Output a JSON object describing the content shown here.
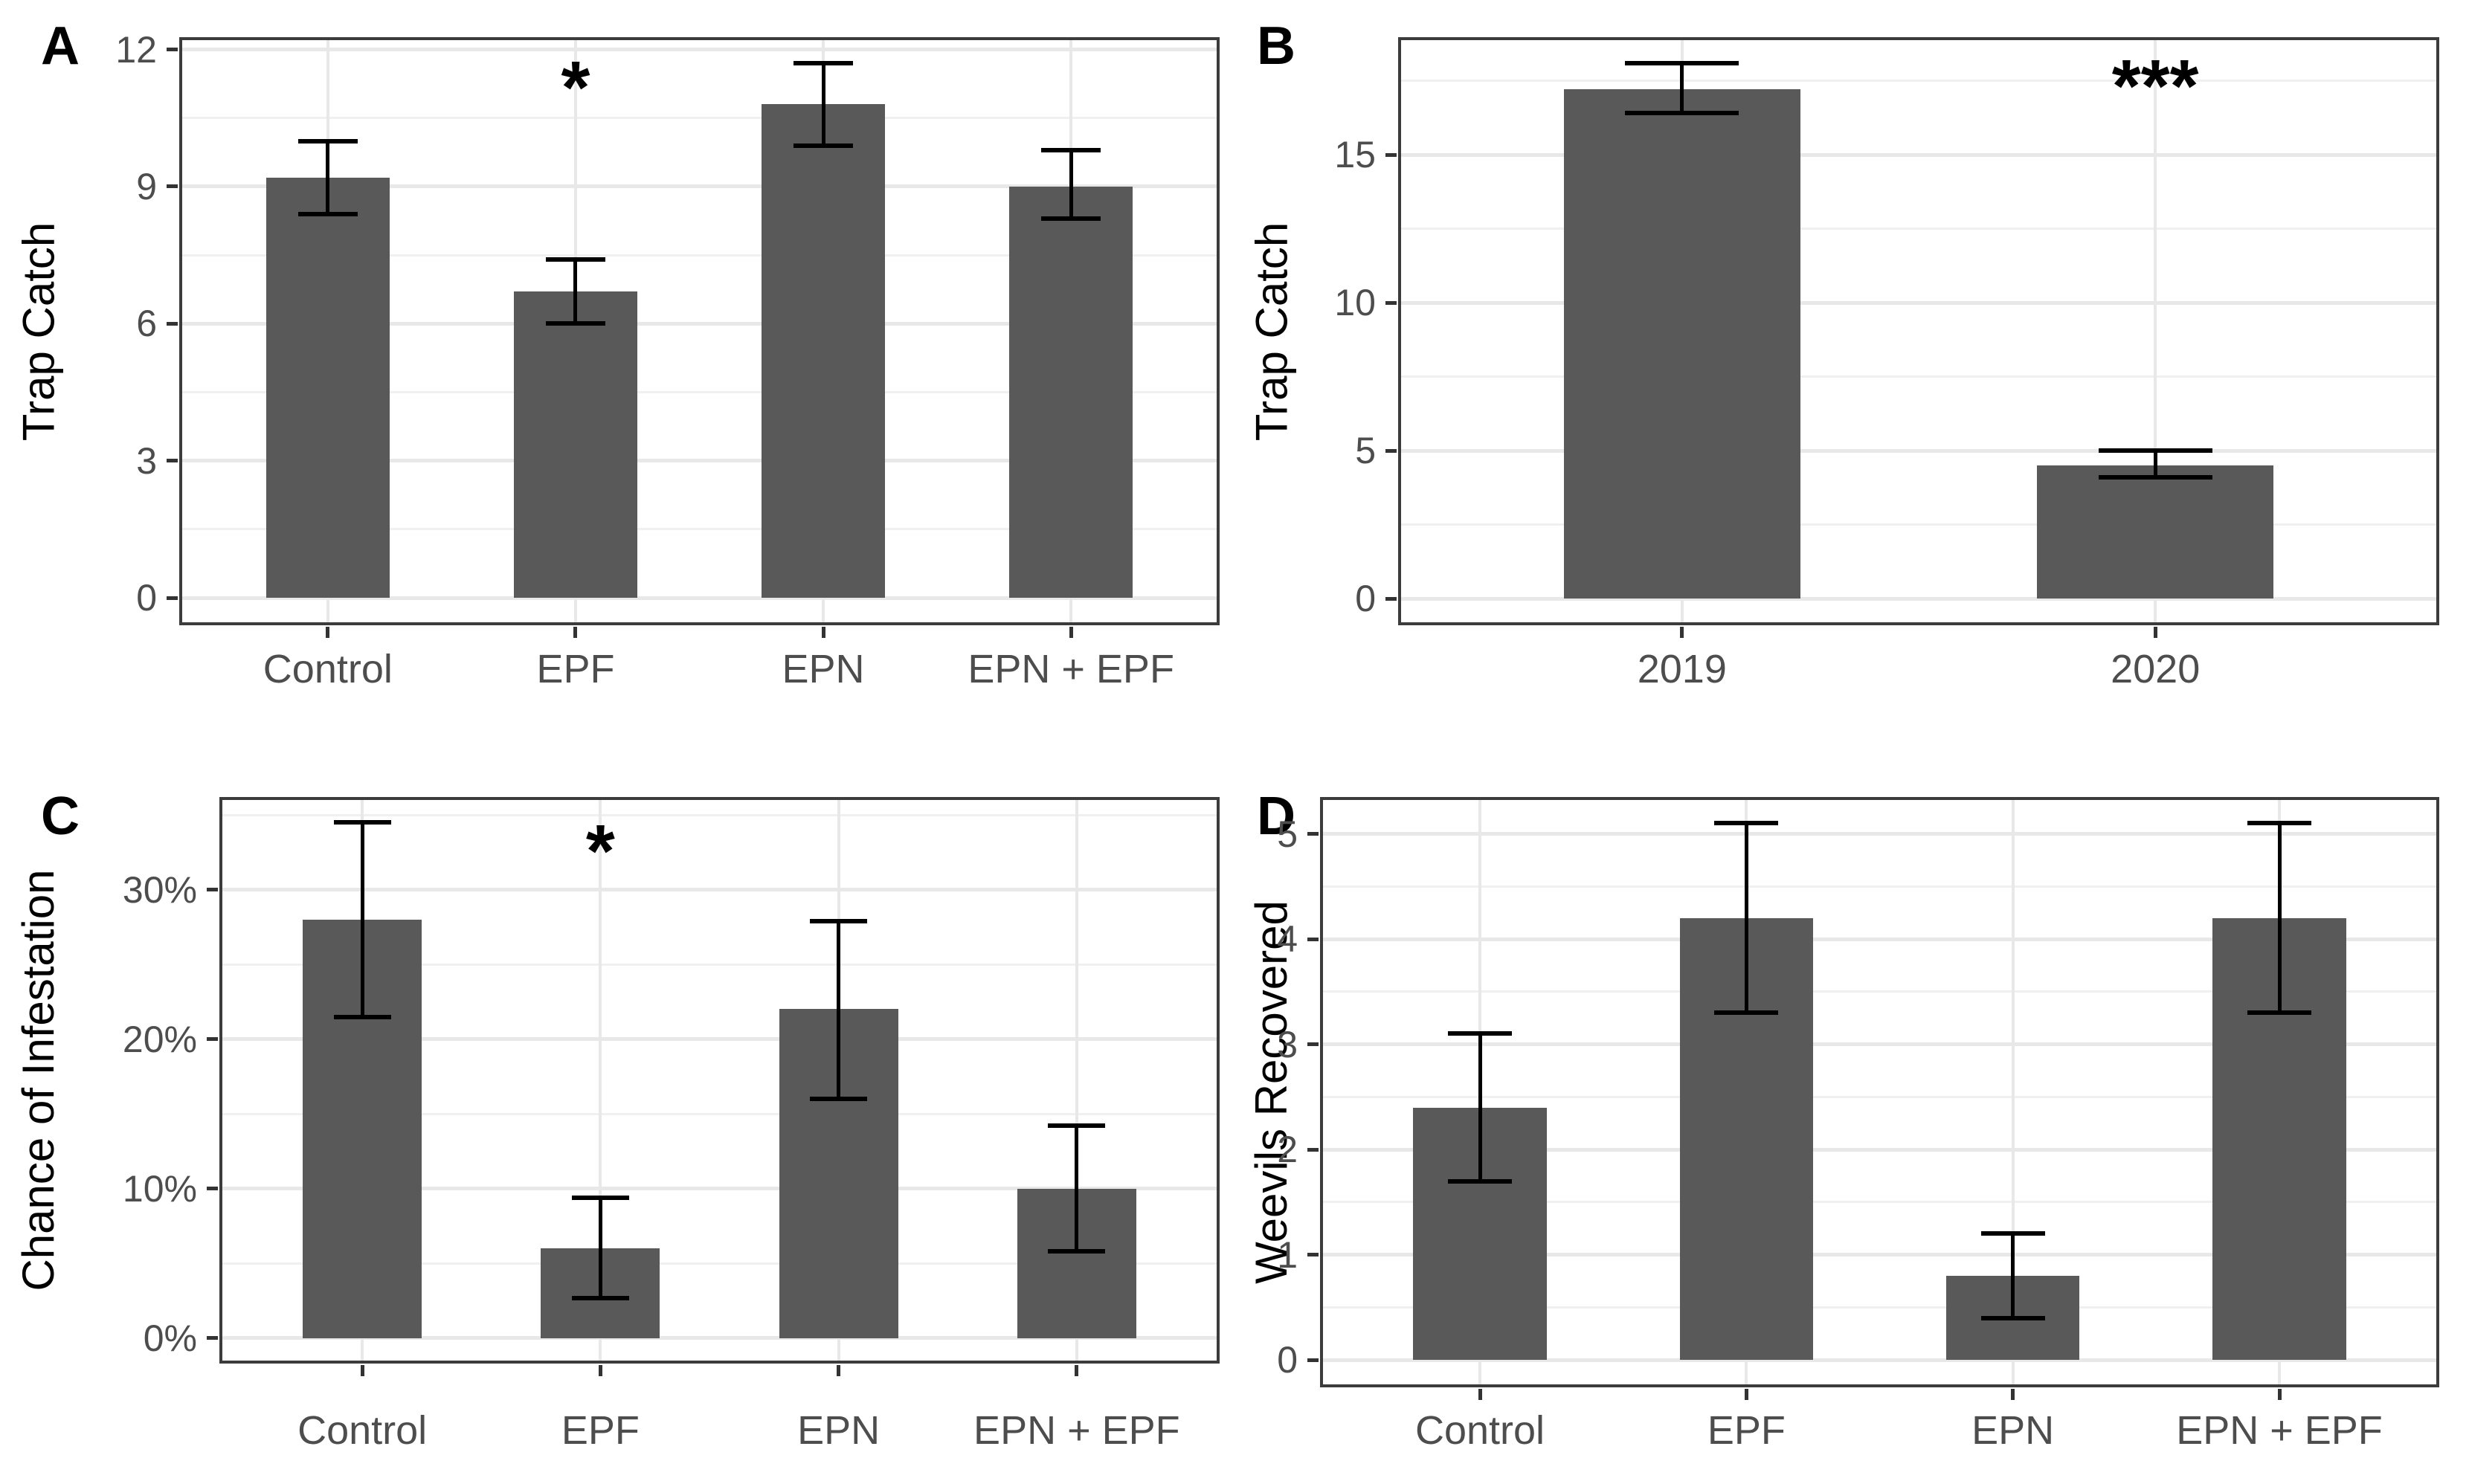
{
  "figure": {
    "background": "#ffffff",
    "description": "Four-panel bar chart figure with error bars and significance stars"
  },
  "colors": {
    "bar_fill": "#595959",
    "grid_major": "#e8e8e8",
    "grid_minor": "#f0f0f0",
    "panel_border": "#3c3c3c",
    "axis_tick": "#333333",
    "tick_label": "#4d4d4d",
    "axis_title": "#000000",
    "error_bar": "#000000",
    "annotation": "#000000"
  },
  "chart_data": [
    {
      "panel": "A",
      "type": "bar",
      "title": "",
      "xlabel": "",
      "ylabel": "Trap Catch",
      "categories": [
        "Control",
        "EPF",
        "EPN",
        "EPN + EPF"
      ],
      "values": [
        9.2,
        6.7,
        10.8,
        9.0
      ],
      "error_low": [
        8.4,
        6.0,
        9.9,
        8.3
      ],
      "error_high": [
        10.0,
        7.4,
        11.7,
        9.8
      ],
      "ylim": [
        -0.6,
        12.27
      ],
      "yticks": [
        0,
        3,
        6,
        9,
        12
      ],
      "yminor": [
        1.5,
        4.5,
        7.5,
        10.5
      ],
      "ytick_suffix": "",
      "grid": true,
      "legend": "none",
      "annotations": [
        {
          "text": "*",
          "category": "EPF",
          "y": 11.4
        }
      ]
    },
    {
      "panel": "B",
      "type": "bar",
      "title": "",
      "xlabel": "",
      "ylabel": "Trap Catch",
      "categories": [
        "2019",
        "2020"
      ],
      "values": [
        17.2,
        4.5
      ],
      "error_low": [
        16.4,
        4.1
      ],
      "error_high": [
        18.1,
        5.0
      ],
      "ylim": [
        -0.9,
        18.97
      ],
      "yticks": [
        0,
        5,
        10,
        15
      ],
      "yminor": [
        2.5,
        7.5,
        12.5,
        17.5
      ],
      "ytick_suffix": "",
      "grid": true,
      "legend": "none",
      "annotations": [
        {
          "text": "***",
          "category": "2020",
          "y": 17.7
        }
      ]
    },
    {
      "panel": "C",
      "type": "bar",
      "title": "",
      "xlabel": "",
      "ylabel": "Chance of Infestation",
      "categories": [
        "Control",
        "EPF",
        "EPN",
        "EPN + EPF"
      ],
      "values": [
        28,
        6,
        22,
        10
      ],
      "error_low": [
        21.5,
        2.7,
        16.0,
        5.8
      ],
      "error_high": [
        34.5,
        9.4,
        27.9,
        14.2
      ],
      "ylim": [
        -1.7,
        36.2
      ],
      "yticks": [
        0,
        10,
        20,
        30
      ],
      "yminor": [
        5,
        15,
        25,
        35
      ],
      "ytick_suffix": "%",
      "grid": true,
      "legend": "none",
      "annotations": [
        {
          "text": "*",
          "category": "EPF",
          "y": 33.3
        }
      ]
    },
    {
      "panel": "D",
      "type": "bar",
      "title": "",
      "xlabel": "",
      "ylabel": "Weevils Recovered",
      "categories": [
        "Control",
        "EPF",
        "EPN",
        "EPN + EPF"
      ],
      "values": [
        2.4,
        4.2,
        0.8,
        4.2
      ],
      "error_low": [
        1.7,
        3.3,
        0.4,
        3.3
      ],
      "error_high": [
        3.1,
        5.1,
        1.2,
        5.1
      ],
      "ylim": [
        -0.26,
        5.35
      ],
      "yticks": [
        0,
        1,
        2,
        3,
        4,
        5
      ],
      "yminor": [
        0.5,
        1.5,
        2.5,
        3.5,
        4.5
      ],
      "ytick_suffix": "",
      "grid": true,
      "legend": "none",
      "annotations": []
    }
  ]
}
